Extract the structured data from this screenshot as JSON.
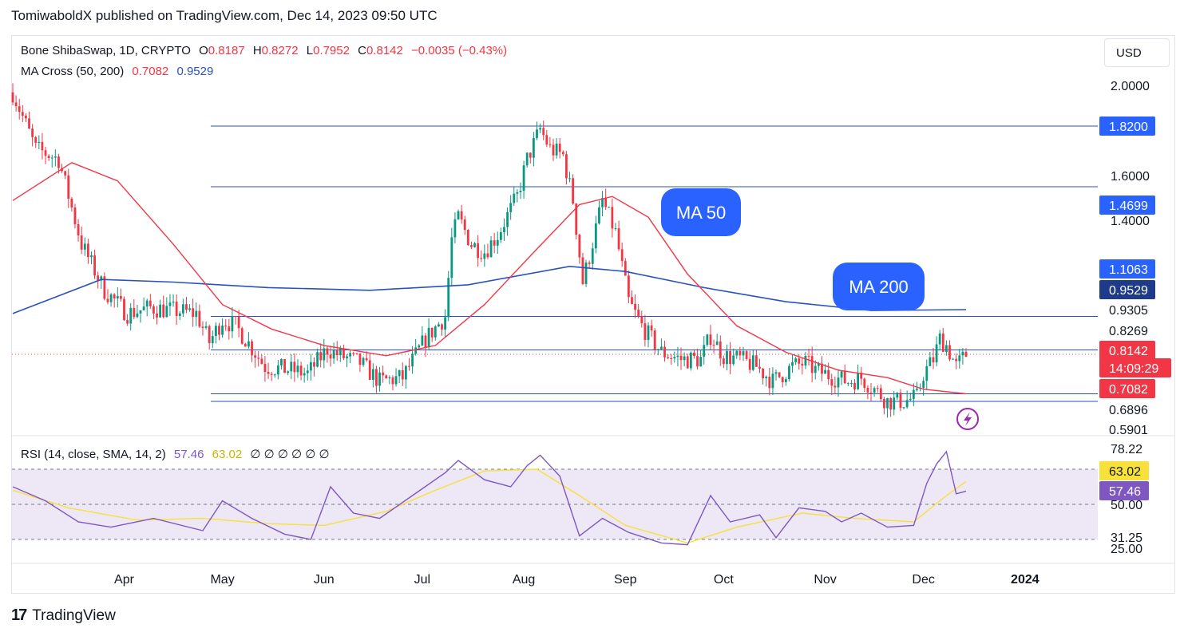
{
  "header": {
    "text": "TomiwaboldX published on TradingView.com, Dec 14, 2023 09:50 UTC"
  },
  "legend": {
    "symbol": "Bone ShibaSwap, 1D, CRYPTO",
    "o_label": "O",
    "o": "0.8187",
    "h_label": "H",
    "h": "0.8272",
    "l_label": "L",
    "l": "0.7952",
    "c_label": "C",
    "c": "0.8142",
    "change": "−0.0035 (−0.43%)",
    "ma_label": "MA Cross (50, 200)",
    "ma50": "0.7082",
    "ma200": "0.9529",
    "rsi_label": "RSI (14, close, SMA, 14, 2)",
    "rsi": "57.46",
    "rsi_sma": "63.02",
    "rsi_extra": "∅ ∅ ∅ ∅ ∅ ∅"
  },
  "currency_button": "USD",
  "footer": {
    "logo": "17",
    "brand": "TradingView"
  },
  "colors": {
    "up": "#089981",
    "down": "#f23645",
    "ma50": "#f23645",
    "ma200": "#2a52be",
    "hline": "#2a52be",
    "rsi": "#7e57c2",
    "rsi_sma": "#f7e13a",
    "rsi_band": "#ede7f6",
    "label_blue": "#2962ff"
  },
  "chart_data": {
    "type": "candlestick",
    "price_axis": {
      "ticks": [
        "2.0000",
        "1.6000",
        "1.4000"
      ],
      "scale": "log"
    },
    "x_ticks": [
      "Apr",
      "May",
      "Jun",
      "Jul",
      "Aug",
      "Sep",
      "Oct",
      "Nov",
      "Dec",
      "2024"
    ],
    "horizontal_levels": [
      1.82,
      1.4699,
      0.9305,
      0.8269,
      0.7082,
      0.6896
    ],
    "price_labels": [
      {
        "text": "1.8200",
        "style": "dark"
      },
      {
        "text": "1.4699",
        "style": "dark"
      },
      {
        "text": "1.1063",
        "style": "dark"
      },
      {
        "text": "0.9529",
        "style": "navy"
      },
      {
        "text": "0.9305",
        "style": "plain"
      },
      {
        "text": "0.8269",
        "style": "plain"
      },
      {
        "text": "0.8142",
        "style": "red"
      },
      {
        "text": "14:09:29",
        "style": "red"
      },
      {
        "text": "0.7082",
        "style": "red"
      },
      {
        "text": "0.6896",
        "style": "plain"
      },
      {
        "text": "0.5901",
        "style": "plain"
      }
    ],
    "annotations": [
      "MA 50",
      "MA 200"
    ],
    "close_path": [
      [
        "2023-02-26",
        2.05
      ],
      [
        "2023-03-05",
        1.68
      ],
      [
        "2023-03-12",
        1.62
      ],
      [
        "2023-03-19",
        1.2
      ],
      [
        "2023-03-26",
        1.02
      ],
      [
        "2023-04-02",
        0.94
      ],
      [
        "2023-04-09",
        0.96
      ],
      [
        "2023-04-16",
        0.95
      ],
      [
        "2023-04-23",
        0.94
      ],
      [
        "2023-04-27",
        0.85
      ],
      [
        "2023-05-01",
        0.92
      ],
      [
        "2023-05-05",
        0.9
      ],
      [
        "2023-05-08",
        0.86
      ],
      [
        "2023-05-14",
        0.78
      ],
      [
        "2023-05-22",
        0.77
      ],
      [
        "2023-05-27",
        0.76
      ],
      [
        "2023-06-02",
        0.83
      ],
      [
        "2023-06-06",
        0.81
      ],
      [
        "2023-06-12",
        0.79
      ],
      [
        "2023-06-18",
        0.74
      ],
      [
        "2023-06-25",
        0.75
      ],
      [
        "2023-07-02",
        0.86
      ],
      [
        "2023-07-08",
        0.93
      ],
      [
        "2023-07-10",
        1.22
      ],
      [
        "2023-07-12",
        1.32
      ],
      [
        "2023-07-16",
        1.2
      ],
      [
        "2023-07-20",
        1.17
      ],
      [
        "2023-07-24",
        1.24
      ],
      [
        "2023-07-30",
        1.42
      ],
      [
        "2023-08-02",
        1.62
      ],
      [
        "2023-08-06",
        1.8
      ],
      [
        "2023-08-09",
        1.68
      ],
      [
        "2023-08-13",
        1.64
      ],
      [
        "2023-08-16",
        1.4
      ],
      [
        "2023-08-19",
        1.05
      ],
      [
        "2023-08-21",
        1.15
      ],
      [
        "2023-08-25",
        1.4
      ],
      [
        "2023-08-29",
        1.25
      ],
      [
        "2023-09-02",
        0.98
      ],
      [
        "2023-09-06",
        0.9
      ],
      [
        "2023-09-12",
        0.82
      ],
      [
        "2023-09-18",
        0.8
      ],
      [
        "2023-09-24",
        0.8
      ],
      [
        "2023-09-27",
        0.87
      ],
      [
        "2023-10-01",
        0.81
      ],
      [
        "2023-10-06",
        0.8
      ],
      [
        "2023-10-11",
        0.78
      ],
      [
        "2023-10-16",
        0.74
      ],
      [
        "2023-10-22",
        0.78
      ],
      [
        "2023-10-26",
        0.79
      ],
      [
        "2023-10-29",
        0.77
      ],
      [
        "2023-11-04",
        0.75
      ],
      [
        "2023-11-08",
        0.74
      ],
      [
        "2023-11-12",
        0.75
      ],
      [
        "2023-11-16",
        0.72
      ],
      [
        "2023-11-20",
        0.69
      ],
      [
        "2023-11-25",
        0.69
      ],
      [
        "2023-11-29",
        0.7
      ],
      [
        "2023-12-01",
        0.76
      ],
      [
        "2023-12-04",
        0.8
      ],
      [
        "2023-12-06",
        0.86
      ],
      [
        "2023-12-08",
        0.84
      ],
      [
        "2023-12-11",
        0.78
      ],
      [
        "2023-12-14",
        0.8142
      ]
    ],
    "ma50_path": [
      [
        "2023-02-26",
        1.4
      ],
      [
        "2023-03-16",
        1.6
      ],
      [
        "2023-03-30",
        1.5
      ],
      [
        "2023-04-16",
        1.2
      ],
      [
        "2023-05-01",
        0.97
      ],
      [
        "2023-05-16",
        0.89
      ],
      [
        "2023-06-01",
        0.84
      ],
      [
        "2023-06-20",
        0.81
      ],
      [
        "2023-07-05",
        0.84
      ],
      [
        "2023-07-20",
        0.97
      ],
      [
        "2023-08-05",
        1.18
      ],
      [
        "2023-08-18",
        1.38
      ],
      [
        "2023-08-28",
        1.42
      ],
      [
        "2023-09-08",
        1.32
      ],
      [
        "2023-09-20",
        1.08
      ],
      [
        "2023-10-05",
        0.9
      ],
      [
        "2023-10-20",
        0.82
      ],
      [
        "2023-11-05",
        0.77
      ],
      [
        "2023-11-20",
        0.75
      ],
      [
        "2023-12-01",
        0.72
      ],
      [
        "2023-12-14",
        0.7082
      ]
    ],
    "ma200_path": [
      [
        "2023-02-26",
        0.94
      ],
      [
        "2023-03-25",
        1.06
      ],
      [
        "2023-04-16",
        1.05
      ],
      [
        "2023-05-15",
        1.03
      ],
      [
        "2023-06-15",
        1.02
      ],
      [
        "2023-07-15",
        1.04
      ],
      [
        "2023-08-15",
        1.11
      ],
      [
        "2023-09-01",
        1.09
      ],
      [
        "2023-09-25",
        1.03
      ],
      [
        "2023-10-20",
        0.98
      ],
      [
        "2023-11-15",
        0.95
      ],
      [
        "2023-12-14",
        0.9529
      ]
    ],
    "rsi": {
      "axis_ticks": [
        "78.22",
        "50.00",
        "31.25",
        "25.00"
      ],
      "levels": [
        70,
        50,
        30
      ],
      "current_labels": [
        "63.02",
        "57.46"
      ],
      "rsi_path": [
        [
          "2023-02-26",
          60
        ],
        [
          "2023-03-08",
          52
        ],
        [
          "2023-03-18",
          40
        ],
        [
          "2023-03-28",
          37
        ],
        [
          "2023-04-10",
          42
        ],
        [
          "2023-04-25",
          35
        ],
        [
          "2023-05-01",
          52
        ],
        [
          "2023-05-10",
          42
        ],
        [
          "2023-05-20",
          33
        ],
        [
          "2023-05-28",
          30
        ],
        [
          "2023-06-03",
          60
        ],
        [
          "2023-06-10",
          45
        ],
        [
          "2023-06-18",
          42
        ],
        [
          "2023-06-28",
          55
        ],
        [
          "2023-07-08",
          68
        ],
        [
          "2023-07-12",
          75
        ],
        [
          "2023-07-20",
          64
        ],
        [
          "2023-07-28",
          60
        ],
        [
          "2023-08-02",
          72
        ],
        [
          "2023-08-06",
          78
        ],
        [
          "2023-08-12",
          66
        ],
        [
          "2023-08-18",
          32
        ],
        [
          "2023-08-25",
          42
        ],
        [
          "2023-09-02",
          34
        ],
        [
          "2023-09-12",
          28
        ],
        [
          "2023-09-20",
          27
        ],
        [
          "2023-09-27",
          55
        ],
        [
          "2023-10-03",
          40
        ],
        [
          "2023-10-12",
          44
        ],
        [
          "2023-10-17",
          31
        ],
        [
          "2023-10-24",
          48
        ],
        [
          "2023-11-01",
          46
        ],
        [
          "2023-11-06",
          40
        ],
        [
          "2023-11-12",
          45
        ],
        [
          "2023-11-20",
          37
        ],
        [
          "2023-11-28",
          38
        ],
        [
          "2023-12-02",
          62
        ],
        [
          "2023-12-05",
          73
        ],
        [
          "2023-12-08",
          80
        ],
        [
          "2023-12-11",
          56
        ],
        [
          "2023-12-14",
          57.46
        ]
      ],
      "sma_path": [
        [
          "2023-02-26",
          58
        ],
        [
          "2023-03-15",
          48
        ],
        [
          "2023-04-05",
          41
        ],
        [
          "2023-04-25",
          42
        ],
        [
          "2023-05-15",
          39
        ],
        [
          "2023-06-01",
          38
        ],
        [
          "2023-06-20",
          46
        ],
        [
          "2023-07-05",
          58
        ],
        [
          "2023-07-20",
          69
        ],
        [
          "2023-08-05",
          70
        ],
        [
          "2023-08-18",
          55
        ],
        [
          "2023-09-01",
          38
        ],
        [
          "2023-09-20",
          28
        ],
        [
          "2023-10-05",
          37
        ],
        [
          "2023-10-25",
          45
        ],
        [
          "2023-11-10",
          42
        ],
        [
          "2023-11-28",
          40
        ],
        [
          "2023-12-08",
          55
        ],
        [
          "2023-12-14",
          63.02
        ]
      ]
    }
  }
}
